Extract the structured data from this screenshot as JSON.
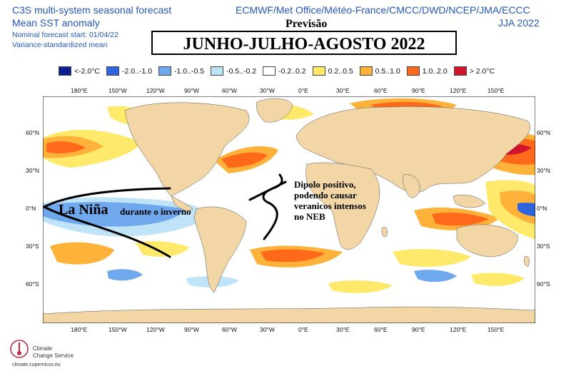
{
  "header": {
    "title_line1": "C3S multi-system seasonal forecast",
    "title_line2": "Mean SST anomaly",
    "start_line": "Nominal forecast start: 01/04/22",
    "variance_line": "Variance-standardized mean",
    "centres": "ECMWF/Met Office/Météo-France/CMCC/DWD/NCEP/JMA/ECCC",
    "season": "JJA 2022"
  },
  "banner": {
    "previsao": "Previsão",
    "title": "JUNHO-JULHO-AGOSTO 2022"
  },
  "legend": [
    {
      "label": "<-2.0°C",
      "color": "#0a1f8f"
    },
    {
      "label": "-2.0..-1.0",
      "color": "#2f64e0"
    },
    {
      "label": "-1.0..-0.5",
      "color": "#6fa8ec"
    },
    {
      "label": "-0.5..-0.2",
      "color": "#bfe3f7"
    },
    {
      "label": "-0.2..0.2",
      "color": "#ffffff"
    },
    {
      "label": "0.2..0.5",
      "color": "#ffe96b"
    },
    {
      "label": "0.5..1.0",
      "color": "#ffb23a"
    },
    {
      "label": "1.0..2.0",
      "color": "#ff6a1a"
    },
    {
      "label": "> 2.0°C",
      "color": "#d2142c"
    }
  ],
  "axes": {
    "lon_labels": [
      "180°E",
      "150°W",
      "120°W",
      "90°W",
      "60°W",
      "30°W",
      "0°E",
      "30°E",
      "60°E",
      "90°E",
      "120°E",
      "150°E"
    ],
    "lat_labels": [
      "60°N",
      "30°N",
      "0°N",
      "30°S",
      "60°S"
    ]
  },
  "annotations": {
    "la_nina_big": "La Niña",
    "la_nina_rest": "durante o inverno",
    "dipolo": [
      "Dipolo positivo,",
      "podendo causar",
      "veranicos intensos",
      "no NEB"
    ]
  },
  "logo": {
    "line1": "Climate",
    "line2": "Change Service",
    "url": "climate.copernicus.eu"
  },
  "colors": {
    "land": "#f2d6a6",
    "ocean_neutral": "#ffffff",
    "frame": "#000000"
  }
}
